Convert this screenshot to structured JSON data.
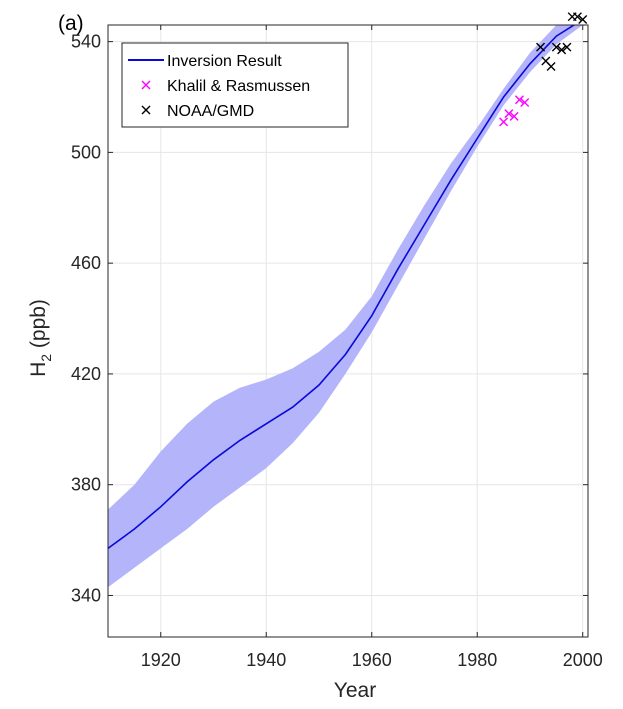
{
  "chart_data": {
    "type": "line",
    "panel_label": "(a)",
    "xlabel": "Year",
    "ylabel_main": "H",
    "ylabel_sub": "2",
    "ylabel_rest": " (ppb)",
    "xlim": [
      1910,
      2001
    ],
    "ylim": [
      325,
      546
    ],
    "xticks": [
      1920,
      1940,
      1960,
      1980,
      2000
    ],
    "yticks": [
      340,
      380,
      420,
      460,
      500,
      540
    ],
    "grid": true,
    "legend_position": "top-left",
    "colors": {
      "line": "#0a0ad8",
      "band": "#b4b4fa",
      "khalil": "#ff00ff",
      "noaa": "#000000",
      "grid": "#e6e6e6",
      "axis": "#262626"
    },
    "series": [
      {
        "name": "Inversion Result",
        "kind": "line",
        "x": [
          1910,
          1915,
          1920,
          1925,
          1930,
          1935,
          1940,
          1945,
          1950,
          1955,
          1960,
          1965,
          1970,
          1975,
          1980,
          1985,
          1990,
          1995,
          2000
        ],
        "y": [
          357,
          364,
          372,
          381,
          389,
          396,
          402,
          408,
          416,
          427,
          441,
          458,
          474,
          490,
          505,
          520,
          532,
          542,
          548
        ],
        "lower": [
          343,
          350,
          357,
          364,
          372,
          379,
          386,
          395,
          406,
          420,
          435,
          452,
          469,
          486,
          502,
          517,
          529,
          539,
          546
        ],
        "upper": [
          371,
          380,
          392,
          402,
          410,
          415,
          418,
          422,
          428,
          436,
          448,
          465,
          481,
          496,
          509,
          523,
          536,
          546,
          551
        ]
      },
      {
        "name": "Khalil & Rasmussen",
        "kind": "markers",
        "x": [
          1985,
          1986,
          1987,
          1988,
          1989
        ],
        "y": [
          511,
          514,
          513,
          519,
          518
        ]
      },
      {
        "name": "NOAA/GMD",
        "kind": "markers",
        "x": [
          1992,
          1993,
          1994,
          1995,
          1996,
          1997,
          1998,
          1999,
          2000
        ],
        "y": [
          538,
          533,
          531,
          538,
          537,
          538,
          549,
          549,
          548
        ]
      }
    ]
  }
}
